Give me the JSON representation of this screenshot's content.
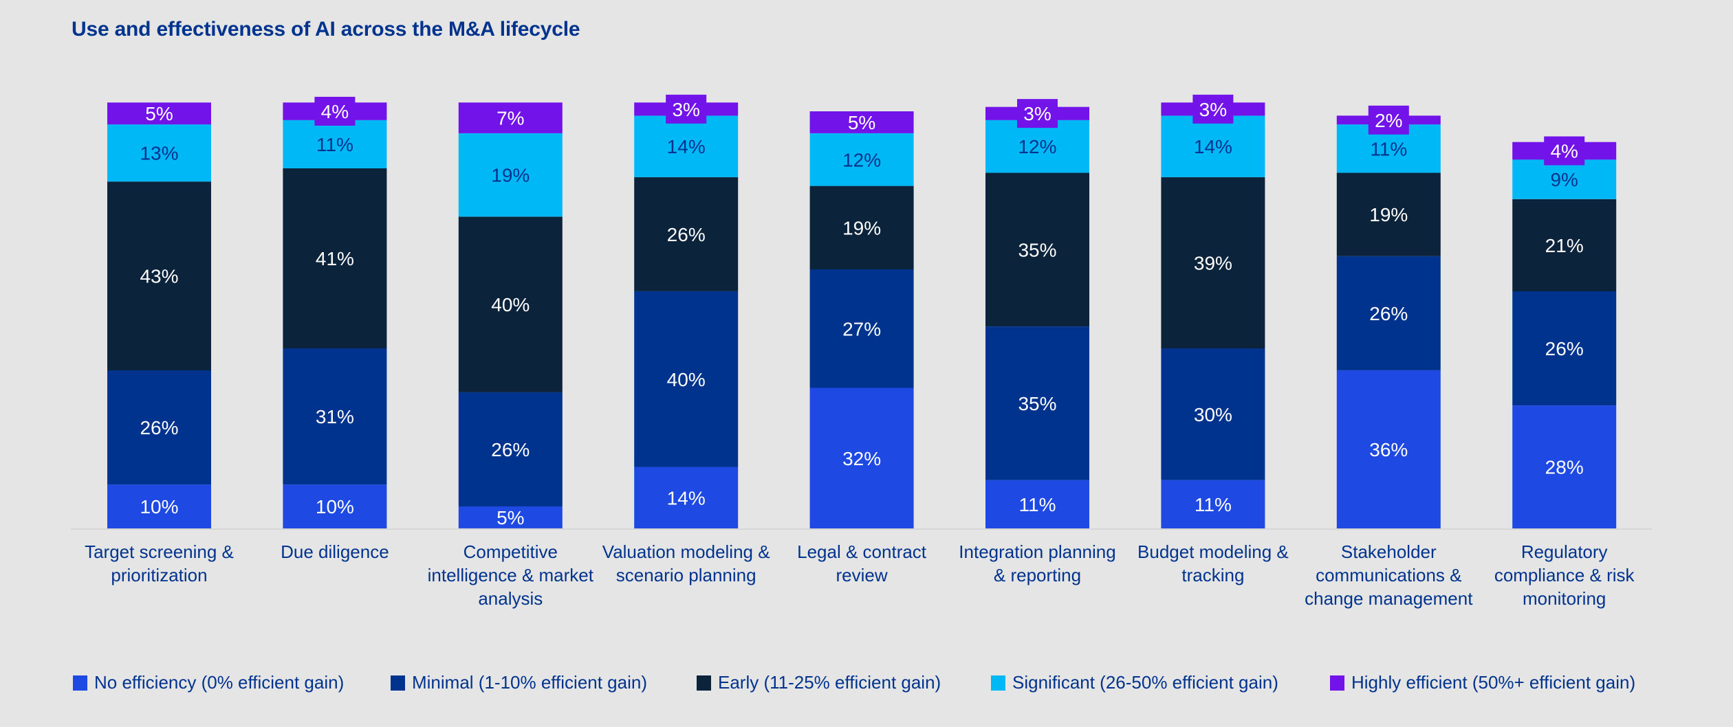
{
  "chart_data": {
    "type": "bar",
    "stacked": true,
    "title": "Use and effectiveness of AI across the M&A lifecycle",
    "xlabel": "",
    "ylabel": "",
    "ylim": [
      0,
      100
    ],
    "grid": false,
    "value_suffix": "%",
    "legend_position": "bottom",
    "categories": [
      "Target screening & prioritization",
      "Due diligence",
      "Competitive intelligence & market analysis",
      "Valuation modeling & scenario planning",
      "Legal & contract review",
      "Integration planning & reporting",
      "Budget modeling & tracking",
      "Stakeholder communications & change management",
      "Regulatory compliance & risk monitoring"
    ],
    "category_lines": [
      [
        "Target screening &",
        "prioritization"
      ],
      [
        "Due diligence"
      ],
      [
        "Competitive",
        "intelligence & market",
        "analysis"
      ],
      [
        "Valuation modeling &",
        "scenario planning"
      ],
      [
        "Legal & contract",
        "review"
      ],
      [
        "Integration planning",
        "& reporting"
      ],
      [
        "Budget modeling &",
        "tracking"
      ],
      [
        "Stakeholder",
        "communications &",
        "change management"
      ],
      [
        "Regulatory",
        "compliance & risk",
        "monitoring"
      ]
    ],
    "series": [
      {
        "name": "No efficiency (0% efficient gain)",
        "color": "#1E49E2",
        "label_color": "#FFFFFF",
        "values": [
          10,
          10,
          5,
          14,
          32,
          11,
          11,
          36,
          28
        ]
      },
      {
        "name": "Minimal (1-10% efficient gain)",
        "color": "#00338D",
        "label_color": "#FFFFFF",
        "values": [
          26,
          31,
          26,
          40,
          27,
          35,
          30,
          26,
          26
        ]
      },
      {
        "name": "Early (11-25% efficient gain)",
        "color": "#0C233C",
        "label_color": "#FFFFFF",
        "values": [
          43,
          41,
          40,
          26,
          19,
          35,
          39,
          19,
          21
        ]
      },
      {
        "name": "Significant (26-50% efficient gain)",
        "color": "#00B8F5",
        "label_color": "#00338D",
        "values": [
          13,
          11,
          19,
          14,
          12,
          12,
          14,
          11,
          9
        ]
      },
      {
        "name": "Highly efficient (50%+ efficient gain)",
        "color": "#7213EA",
        "label_color": "#FFFFFF",
        "values": [
          5,
          4,
          7,
          3,
          5,
          3,
          3,
          2,
          4
        ]
      }
    ]
  },
  "colors": {
    "background": "#E5E5E5",
    "text": "#00338D",
    "axis": "#D6D6D6"
  }
}
